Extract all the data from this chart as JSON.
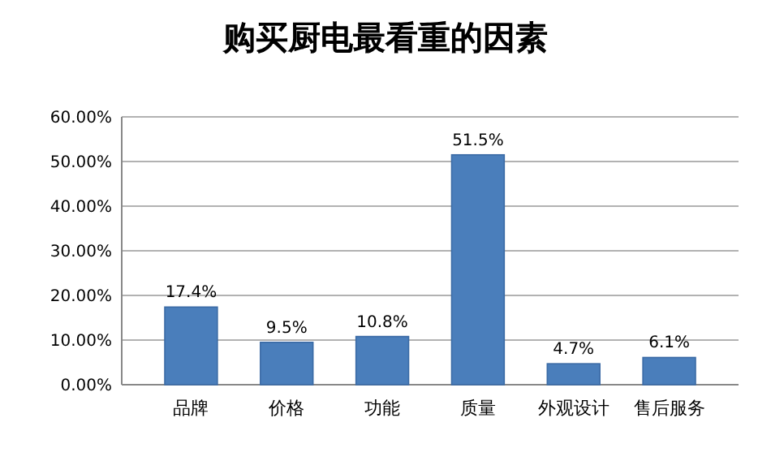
{
  "chart_data": {
    "type": "bar",
    "title": "购买厨电最看重的因素",
    "categories": [
      "品牌",
      "价格",
      "功能",
      "质量",
      "外观设计",
      "售后服务"
    ],
    "values": [
      17.4,
      9.5,
      10.8,
      51.5,
      4.7,
      6.1
    ],
    "value_labels": [
      "17.4%",
      "9.5%",
      "10.8%",
      "51.5%",
      "4.7%",
      "6.1%"
    ],
    "color": "#4a7ebb",
    "ylim": [
      0,
      60
    ],
    "yticks": [
      {
        "value": 0,
        "label": "0.00%"
      },
      {
        "value": 10,
        "label": "10.00%"
      },
      {
        "value": 20,
        "label": "20.00%"
      },
      {
        "value": 30,
        "label": "30.00%"
      },
      {
        "value": 40,
        "label": "40.00%"
      },
      {
        "value": 50,
        "label": "50.00%"
      },
      {
        "value": 60,
        "label": "60.00%"
      }
    ],
    "grid": true
  }
}
